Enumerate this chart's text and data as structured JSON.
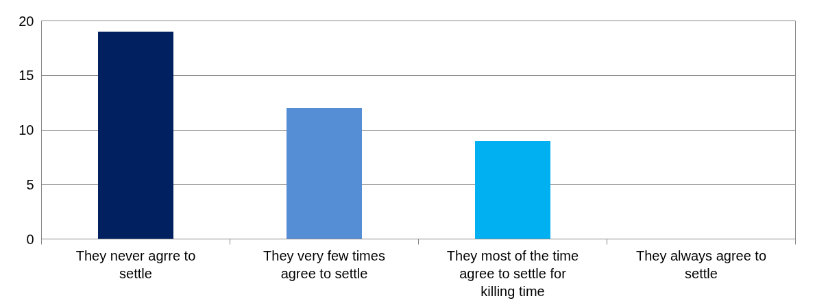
{
  "chart_data": {
    "type": "bar",
    "categories": [
      "They never agrre to settle",
      "They very few times agree to settle",
      "They most of the time agree to settle for killing time",
      "They always agree to settle"
    ],
    "values": [
      19,
      12,
      9,
      0
    ],
    "colors": [
      "#002060",
      "#558ed5",
      "#00b0f0",
      "#4f81bd"
    ],
    "ylim": [
      0,
      20
    ],
    "yticks": [
      0,
      5,
      10,
      15,
      20
    ],
    "grid": "y"
  }
}
